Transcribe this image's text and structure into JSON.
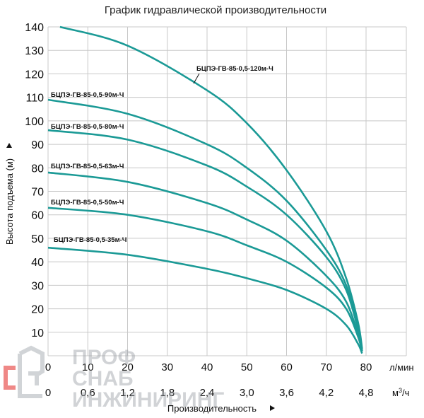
{
  "chart_data": {
    "type": "line",
    "title": "График гидравлической производительности",
    "xlabel": "Производительность",
    "ylabel": "Высота подъема (м)",
    "x_unit_primary": "л/мин",
    "x_unit_secondary": "м3/ч",
    "x_ticks_primary": [
      "0",
      "10",
      "20",
      "30",
      "40",
      "50",
      "60",
      "70",
      "80"
    ],
    "x_ticks_secondary": [
      "0",
      "0,6",
      "1,2",
      "1,8",
      "2,4",
      "3,0",
      "3,6",
      "4,2",
      "4,8"
    ],
    "y_ticks": [
      "10",
      "20",
      "30",
      "40",
      "50",
      "60",
      "70",
      "80",
      "90",
      "100",
      "110",
      "120",
      "130",
      "140"
    ],
    "xlim": [
      0,
      80
    ],
    "ylim": [
      0,
      140
    ],
    "grid": true,
    "legend": "labels above curves",
    "line_color": "#1b9a96",
    "series": [
      {
        "name": "БЦПЭ-ГВ-85-0,5-120м-Ч",
        "x": [
          3,
          20,
          40,
          50,
          60,
          70,
          75,
          78,
          79
        ],
        "y": [
          140,
          132,
          113,
          99,
          79,
          53,
          33,
          14,
          3
        ]
      },
      {
        "name": "БЦПЭ-ГВ-85-0,5-90м-Ч",
        "x": [
          0,
          20,
          40,
          50,
          60,
          70,
          75,
          78,
          79
        ],
        "y": [
          109,
          103,
          90,
          80,
          66,
          45,
          30,
          12,
          2
        ]
      },
      {
        "name": "БЦПЭ-ГВ-85-0,5-80м-Ч",
        "x": [
          0,
          20,
          40,
          50,
          60,
          70,
          75,
          78,
          79
        ],
        "y": [
          96,
          92,
          81,
          72,
          60,
          42,
          28,
          11,
          2
        ]
      },
      {
        "name": "БЦПЭ-ГВ-85-0,5-63м-Ч",
        "x": [
          0,
          20,
          40,
          50,
          60,
          70,
          75,
          78,
          79
        ],
        "y": [
          78,
          74,
          65,
          58,
          49,
          34,
          23,
          9,
          2
        ]
      },
      {
        "name": "БЦПЭ-ГВ-85-0,5-50м-Ч",
        "x": [
          0,
          20,
          40,
          50,
          60,
          70,
          75,
          78,
          79
        ],
        "y": [
          63,
          60,
          53,
          47,
          40,
          29,
          20,
          8,
          2
        ]
      },
      {
        "name": "БЦПЭ-ГВ-85-0,5-35м-Ч",
        "x": [
          0,
          20,
          40,
          50,
          60,
          70,
          75,
          78,
          79
        ],
        "y": [
          46,
          43,
          37,
          33,
          28,
          20,
          13,
          5,
          1
        ]
      }
    ]
  },
  "watermark": {
    "line1": "ПРОФ",
    "line2": "СНАБ",
    "line3": "ИНЖИНИРИНГ",
    "logo_letter": "C",
    "logo_color": "#e53935"
  }
}
